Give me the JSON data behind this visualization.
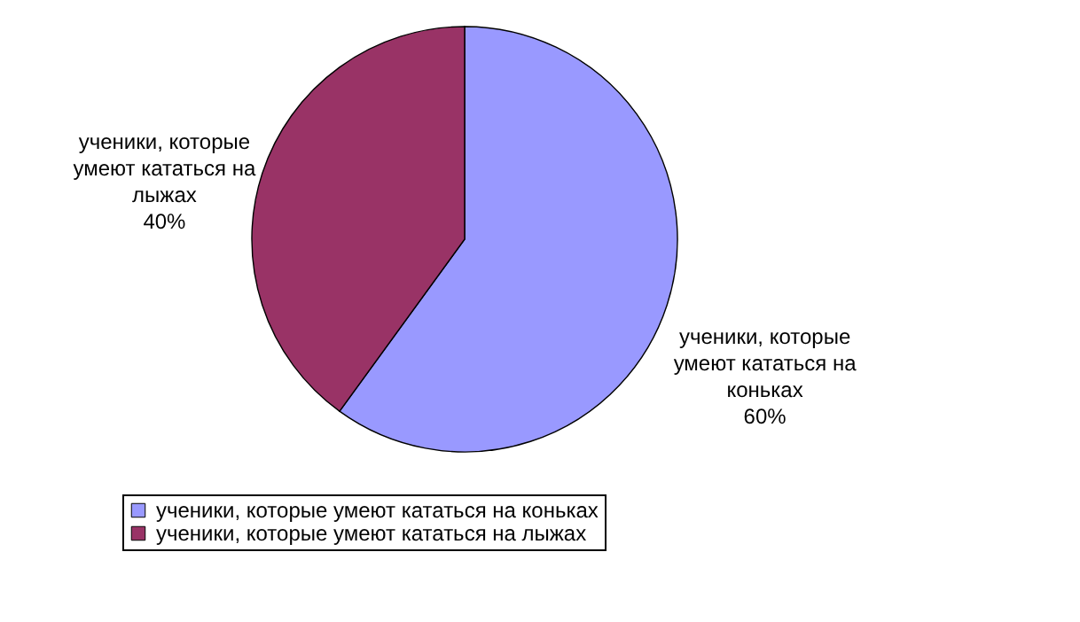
{
  "chart_data": {
    "type": "pie",
    "categories": [
      "ученики, которые умеют кататься на коньках",
      "ученики, которые умеют кататься на лыжах"
    ],
    "values": [
      60,
      40
    ],
    "colors": [
      "#9999ff",
      "#993366"
    ],
    "value_labels": [
      "60%",
      "40%"
    ],
    "legend": "bottom"
  }
}
